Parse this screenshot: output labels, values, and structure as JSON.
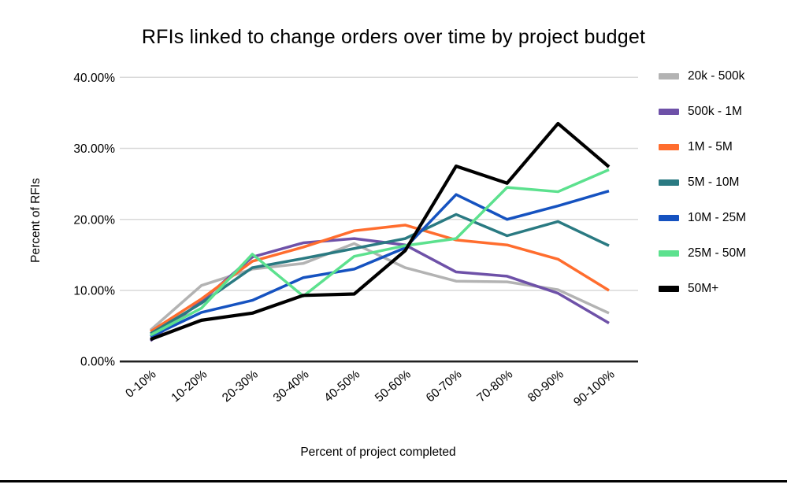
{
  "chart_data": {
    "type": "line",
    "title": "RFIs linked to change orders over time by project budget",
    "xlabel": "Percent of project completed",
    "ylabel": "Percent of RFIs",
    "x_categories": [
      "0-10%",
      "10-20%",
      "20-30%",
      "30-40%",
      "40-50%",
      "50-60%",
      "60-70%",
      "70-80%",
      "80-90%",
      "90-100%"
    ],
    "y_ticks": [
      {
        "label": "40.00%",
        "value": 40
      },
      {
        "label": "30.00%",
        "value": 30
      },
      {
        "label": "20.00%",
        "value": 20
      },
      {
        "label": "10.00%",
        "value": 10
      },
      {
        "label": "0.00%",
        "value": 0
      }
    ],
    "ylim": [
      0,
      40
    ],
    "grid": "horizontal",
    "legend_position": "right",
    "colors": {
      "grid_line": "#d9d9d9",
      "axis_line": "#212121",
      "text": "#000000"
    },
    "series": [
      {
        "name": "20k - 500k",
        "color": "#b3b3b3",
        "values": [
          4.4,
          10.7,
          13.0,
          13.8,
          16.6,
          13.2,
          11.3,
          11.2,
          10.1,
          6.8
        ]
      },
      {
        "name": "500k - 1M",
        "color": "#6e51a8",
        "values": [
          2.9,
          8.5,
          14.7,
          16.7,
          17.3,
          16.4,
          12.6,
          12.0,
          9.6,
          5.4
        ]
      },
      {
        "name": "1M - 5M",
        "color": "#ff6d2e",
        "values": [
          4.2,
          8.8,
          14.1,
          16.1,
          18.4,
          19.2,
          17.1,
          16.4,
          14.4,
          10.0
        ]
      },
      {
        "name": "5M - 10M",
        "color": "#2a7a82",
        "values": [
          3.9,
          8.2,
          13.2,
          14.5,
          15.9,
          17.3,
          20.7,
          17.7,
          19.7,
          16.3
        ]
      },
      {
        "name": "10M - 25M",
        "color": "#1552c0",
        "values": [
          3.5,
          6.9,
          8.6,
          11.8,
          13.0,
          16.0,
          23.5,
          20.0,
          21.9,
          24.0
        ]
      },
      {
        "name": "25M - 50M",
        "color": "#5ce18e",
        "values": [
          3.7,
          7.5,
          15.1,
          9.2,
          14.8,
          16.3,
          17.3,
          24.5,
          23.9,
          27.0
        ]
      },
      {
        "name": "50M+",
        "color": "#000000",
        "values": [
          3.1,
          5.8,
          6.8,
          9.3,
          9.5,
          15.6,
          27.5,
          25.1,
          33.5,
          27.4
        ]
      }
    ]
  }
}
